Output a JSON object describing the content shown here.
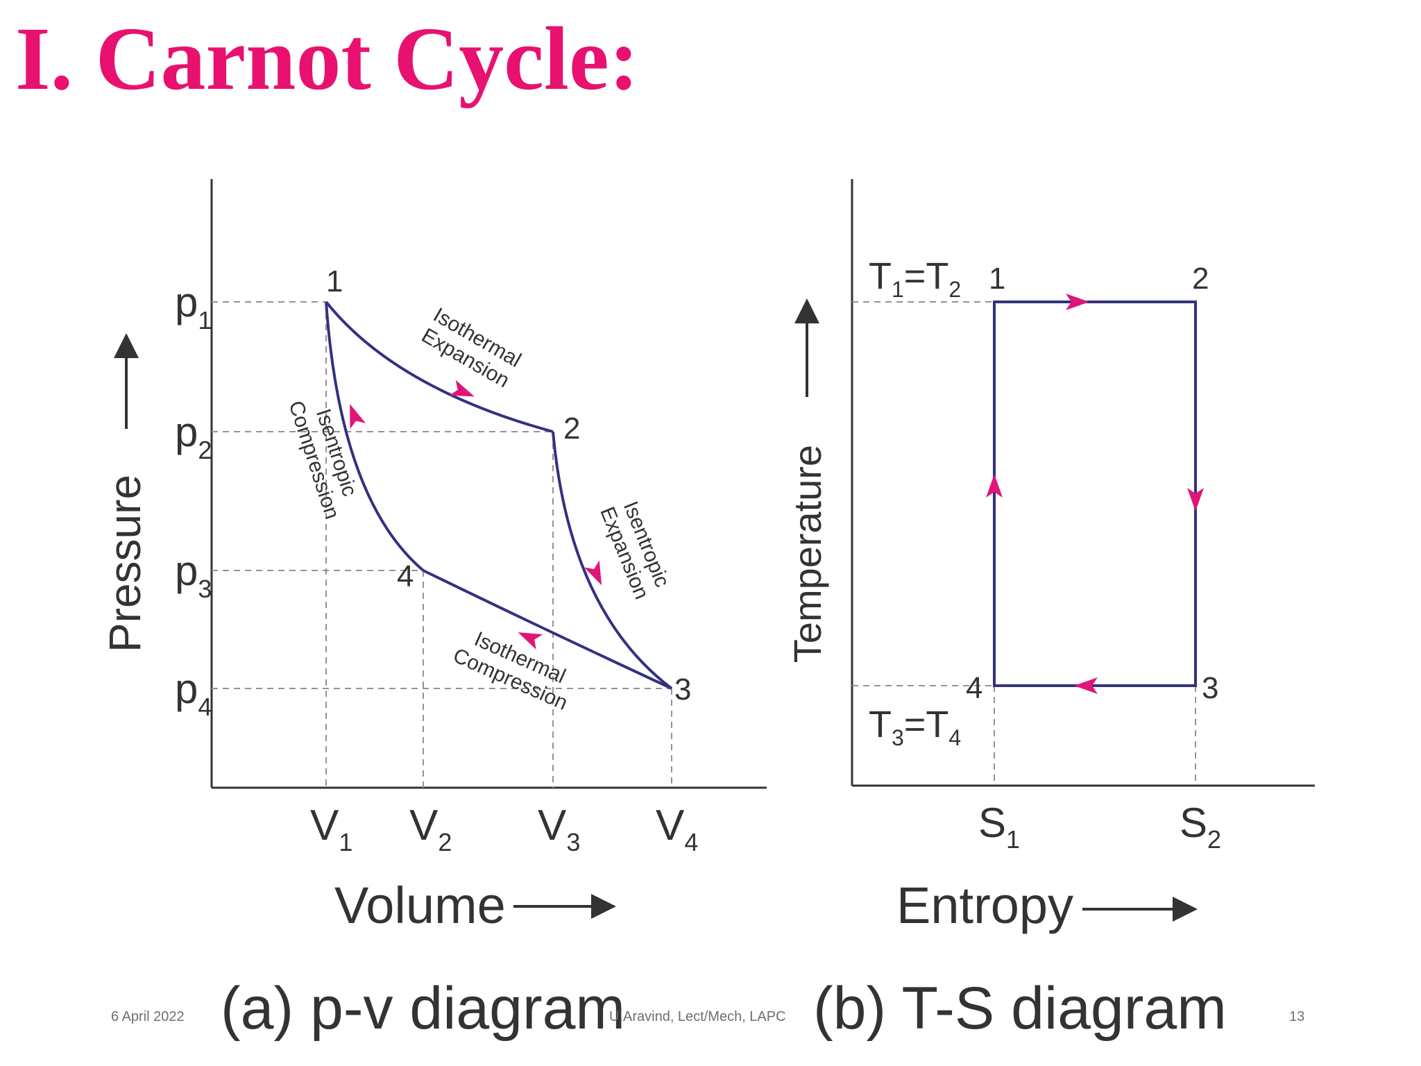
{
  "slide": {
    "title": "I. Carnot Cycle:"
  },
  "footer": {
    "date": "6 April 2022",
    "author": "U.Aravind, Lect/Mech, LAPC",
    "page_number": "13"
  },
  "colors": {
    "title": "#e8116f",
    "cycle_line": "#33317f",
    "arrow": "#e0157a",
    "guide": "#a08a9a",
    "axis": "#333333"
  },
  "pv_diagram": {
    "caption": "(a) p-v diagram",
    "axis_x_label": "Volume",
    "axis_y_label": "Pressure",
    "x_ticks": [
      {
        "base": "V",
        "sub": "1"
      },
      {
        "base": "V",
        "sub": "2"
      },
      {
        "base": "V",
        "sub": "3"
      },
      {
        "base": "V",
        "sub": "4"
      }
    ],
    "y_ticks": [
      {
        "base": "p",
        "sub": "1"
      },
      {
        "base": "p",
        "sub": "2"
      },
      {
        "base": "p",
        "sub": "3"
      },
      {
        "base": "p",
        "sub": "4"
      }
    ],
    "points": [
      "1",
      "2",
      "3",
      "4"
    ],
    "process_labels": {
      "isothermal_expansion": [
        "Isothermal",
        "Expansion"
      ],
      "isentropic_expansion": [
        "Isentropic",
        "Expansion"
      ],
      "isothermal_compression": [
        "Isothermal",
        "Compression"
      ],
      "isentropic_compression": [
        "Isentropic",
        "Compression"
      ]
    }
  },
  "ts_diagram": {
    "caption": "(b) T-S diagram",
    "axis_x_label": "Entropy",
    "axis_y_label": "Temperature",
    "x_ticks": [
      {
        "base": "S",
        "sub": "1"
      },
      {
        "base": "S",
        "sub": "2"
      }
    ],
    "temp_labels": {
      "top": {
        "a": "T",
        "a_sub": "1",
        "b": "T",
        "b_sub": "2"
      },
      "bottom": {
        "a": "T",
        "a_sub": "3",
        "b": "T",
        "b_sub": "4"
      }
    },
    "points": [
      "1",
      "2",
      "3",
      "4"
    ]
  }
}
